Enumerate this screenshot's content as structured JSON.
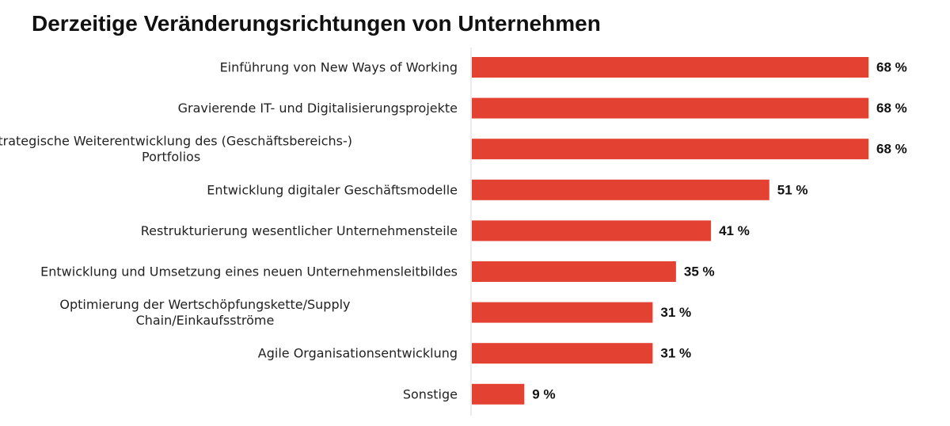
{
  "chart_data": {
    "type": "bar",
    "orientation": "horizontal",
    "title": "Derzeitige Veränderungsrichtungen von Unternehmen",
    "categories": [
      [
        "Einführung von New Ways of Working"
      ],
      [
        "Gravierende IT- und Digitalisierungsprojekte"
      ],
      [
        "Strategische Weiterentwicklung des (Geschäftsbereichs-)",
        "Portfolios"
      ],
      [
        "Entwicklung digitaler Geschäftsmodelle"
      ],
      [
        "Restrukturierung wesentlicher Unternehmensteile"
      ],
      [
        "Entwicklung und Umsetzung eines neuen Unternehmensleitbildes"
      ],
      [
        "Optimierung der Wertschöpfungskette/Supply",
        "Chain/Einkaufsströme"
      ],
      [
        "Agile Organisationsentwicklung"
      ],
      [
        "Sonstige"
      ]
    ],
    "values": [
      68,
      68,
      68,
      51,
      41,
      35,
      31,
      31,
      9
    ],
    "value_labels": [
      "68 %",
      "68 %",
      "68 %",
      "51 %",
      "41 %",
      "35 %",
      "31 %",
      "31 %",
      "9 %"
    ],
    "unit": "%",
    "xlim": [
      0,
      68
    ],
    "grid": false,
    "legend": "none",
    "bar_color": "#e34233",
    "axis_color": "#d9d9d9"
  }
}
